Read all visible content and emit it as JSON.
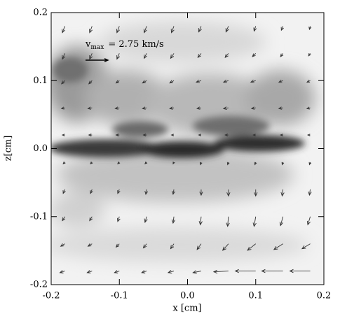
{
  "chart_data": {
    "type": "quiver",
    "xlabel": "x [cm]",
    "ylabel": "z[cm]",
    "xlim": [
      -0.2,
      0.2
    ],
    "ylim": [
      -0.2,
      0.2
    ],
    "xticks": [
      -0.2,
      -0.1,
      {
        "value": 0,
        "label": "0.0"
      },
      0.1,
      0.2
    ],
    "yticks": [
      -0.2,
      -0.1,
      {
        "value": 0,
        "label": "0.0"
      },
      0.1,
      0.2
    ],
    "color": "#333333",
    "reference": {
      "symbol": "v",
      "subscript": "max",
      "text": "= 2.75 km/s",
      "value": 2.75
    },
    "x": [
      -0.18,
      -0.14,
      -0.1,
      -0.06,
      -0.02,
      0.02,
      0.06,
      0.1,
      0.14,
      0.18
    ],
    "z": [
      0.18,
      0.14,
      0.1,
      0.06,
      0.02,
      -0.02,
      -0.06,
      -0.1,
      -0.14,
      -0.18
    ],
    "u": [
      [
        -0.3,
        -0.3,
        -0.3,
        -0.3,
        -0.3,
        -0.3,
        -0.3,
        -0.2,
        -0.2,
        -0.1
      ],
      [
        -0.3,
        -0.3,
        -0.3,
        -0.3,
        -0.4,
        -0.4,
        -0.4,
        -0.4,
        -0.3,
        -0.2
      ],
      [
        -0.4,
        -0.4,
        -0.4,
        -0.5,
        -0.5,
        -0.6,
        -0.6,
        -0.6,
        -0.5,
        -0.4
      ],
      [
        -0.4,
        -0.5,
        -0.5,
        -0.5,
        -0.5,
        -0.5,
        -0.6,
        -0.5,
        -0.5,
        -0.4
      ],
      [
        -0.3,
        -0.4,
        -0.4,
        -0.4,
        -0.3,
        -0.3,
        -0.4,
        -0.3,
        -0.3,
        -0.3
      ],
      [
        -0.2,
        -0.2,
        -0.2,
        -0.2,
        -0.1,
        -0.1,
        -0.1,
        -0.1,
        -0.1,
        -0.1
      ],
      [
        -0.2,
        -0.2,
        -0.2,
        -0.1,
        -0.1,
        0.0,
        0.0,
        0.0,
        -0.1,
        -0.1
      ],
      [
        -0.3,
        -0.3,
        -0.2,
        -0.2,
        -0.1,
        -0.1,
        -0.1,
        -0.2,
        -0.3,
        -0.3
      ],
      [
        -0.5,
        -0.5,
        -0.4,
        -0.4,
        -0.4,
        -0.5,
        -0.7,
        -1.0,
        -1.1,
        -1.0
      ],
      [
        -0.6,
        -0.6,
        -0.6,
        -0.6,
        -0.7,
        -1.0,
        -1.8,
        -2.5,
        -2.6,
        -2.5
      ]
    ],
    "w": [
      [
        -0.8,
        -0.8,
        -0.8,
        -0.8,
        -0.8,
        -0.7,
        -0.7,
        -0.6,
        -0.5,
        -0.4
      ],
      [
        -0.7,
        -0.7,
        -0.7,
        -0.6,
        -0.6,
        -0.5,
        -0.5,
        -0.4,
        -0.4,
        -0.3
      ],
      [
        -0.4,
        -0.4,
        -0.3,
        -0.3,
        -0.3,
        -0.2,
        -0.2,
        -0.2,
        -0.2,
        -0.2
      ],
      [
        -0.1,
        -0.1,
        -0.1,
        -0.1,
        -0.1,
        -0.1,
        -0.1,
        -0.1,
        -0.1,
        -0.1
      ],
      [
        0.0,
        0.0,
        0.0,
        0.0,
        0.0,
        0.0,
        0.0,
        0.0,
        0.0,
        0.0
      ],
      [
        -0.2,
        -0.2,
        -0.2,
        -0.2,
        -0.2,
        -0.3,
        -0.3,
        -0.3,
        -0.3,
        -0.3
      ],
      [
        -0.5,
        -0.5,
        -0.5,
        -0.6,
        -0.6,
        -0.7,
        -0.8,
        -0.8,
        -0.8,
        -0.7
      ],
      [
        -0.5,
        -0.5,
        -0.6,
        -0.7,
        -0.8,
        -1.0,
        -1.2,
        -1.2,
        -1.1,
        -1.0
      ],
      [
        -0.3,
        -0.3,
        -0.4,
        -0.5,
        -0.6,
        -0.7,
        -0.8,
        -0.8,
        -0.7,
        -0.6
      ],
      [
        -0.2,
        -0.2,
        -0.2,
        -0.2,
        -0.2,
        -0.2,
        -0.1,
        0.0,
        0.0,
        0.0
      ]
    ]
  }
}
